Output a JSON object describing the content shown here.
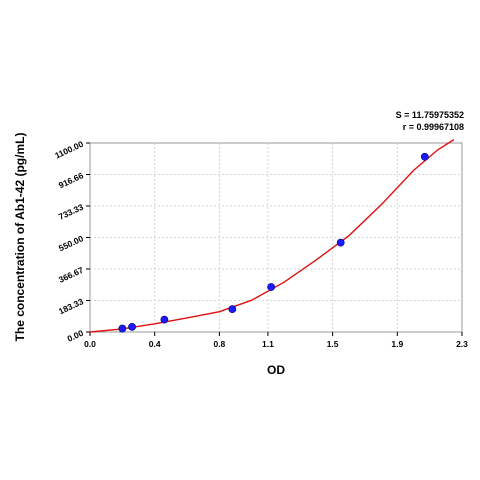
{
  "stats": {
    "s_label": "S = 11.75975352",
    "r_label": "r = 0.99967108"
  },
  "chart_data": {
    "type": "scatter",
    "xlabel": "OD",
    "ylabel": "The concentration of Ab1-42 (pg/mL)",
    "xlim": [
      0.0,
      2.3
    ],
    "ylim": [
      0.0,
      1100.0
    ],
    "x_ticks": [
      0.0,
      0.4,
      0.8,
      1.1,
      1.5,
      1.9,
      2.3
    ],
    "x_tick_labels": [
      "0.0",
      "0.4",
      "0.8",
      "1.1",
      "1.5",
      "1.9",
      "2.3"
    ],
    "y_ticks": [
      0.0,
      183.33,
      366.67,
      550.0,
      733.33,
      916.66,
      1100.0
    ],
    "y_tick_labels": [
      "0.00",
      "183.33",
      "366.67",
      "550.00",
      "733.33",
      "916.66",
      "1100.00"
    ],
    "grid": true,
    "series": [
      {
        "marker_color": "#1a1aff",
        "points": [
          {
            "x": 0.2,
            "y": 20
          },
          {
            "x": 0.26,
            "y": 30
          },
          {
            "x": 0.46,
            "y": 72
          },
          {
            "x": 0.88,
            "y": 133
          },
          {
            "x": 1.12,
            "y": 262
          },
          {
            "x": 1.55,
            "y": 520
          },
          {
            "x": 2.07,
            "y": 1020
          }
        ]
      }
    ],
    "fit_curve": {
      "color": "#e01010",
      "points": [
        {
          "x": 0.0,
          "y": 0
        },
        {
          "x": 0.2,
          "y": 18
        },
        {
          "x": 0.4,
          "y": 48
        },
        {
          "x": 0.6,
          "y": 82
        },
        {
          "x": 0.8,
          "y": 118
        },
        {
          "x": 1.0,
          "y": 185
        },
        {
          "x": 1.2,
          "y": 290
        },
        {
          "x": 1.4,
          "y": 420
        },
        {
          "x": 1.6,
          "y": 560
        },
        {
          "x": 1.8,
          "y": 740
        },
        {
          "x": 2.0,
          "y": 940
        },
        {
          "x": 2.15,
          "y": 1060
        },
        {
          "x": 2.25,
          "y": 1120
        }
      ]
    }
  }
}
